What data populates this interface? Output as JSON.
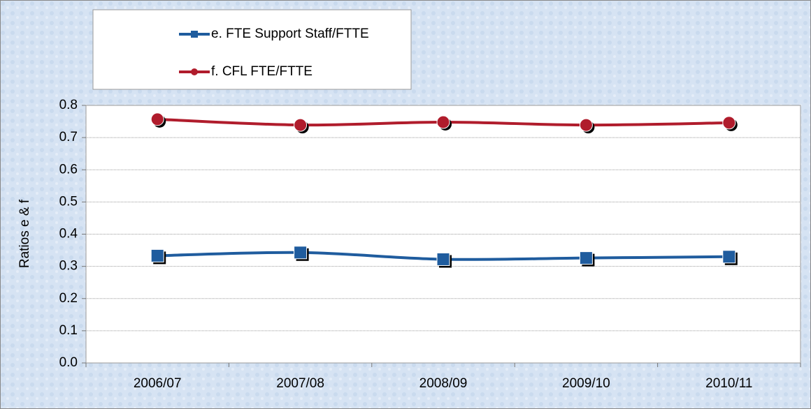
{
  "chart_data": {
    "type": "line",
    "ylabel": "Ratios e & f",
    "categories": [
      "2006/07",
      "2007/08",
      "2008/09",
      "2009/10",
      "2010/11"
    ],
    "series": [
      {
        "name": "e. FTE Support Staff/FTTE",
        "color": "#1f5c9e",
        "marker": "square",
        "values": [
          0.333,
          0.343,
          0.322,
          0.326,
          0.33
        ]
      },
      {
        "name": "f. CFL FTE/FTTE",
        "color": "#b01c2c",
        "marker": "circle",
        "values": [
          0.757,
          0.739,
          0.748,
          0.739,
          0.746
        ]
      }
    ],
    "ylim": [
      0,
      0.8
    ],
    "yticks": [
      {
        "value": 0,
        "label": "0.0"
      },
      0.1,
      0.2,
      0.3,
      0.4,
      0.5,
      0.6,
      0.7,
      0.8
    ],
    "grid": true,
    "smooth": true
  }
}
